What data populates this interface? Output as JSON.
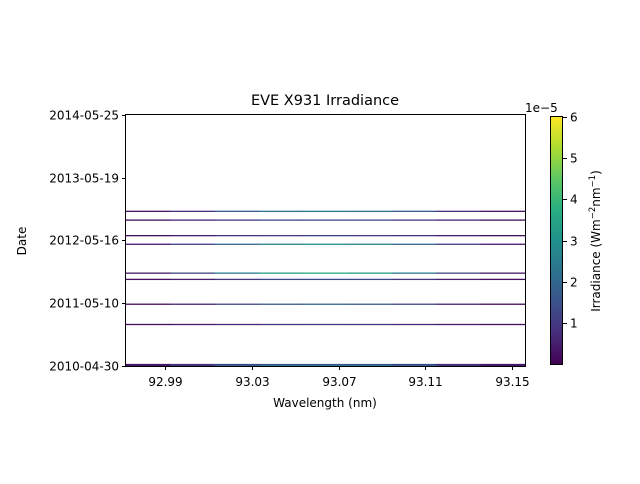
{
  "chart_data": {
    "type": "heatmap",
    "title": "EVE X931 Irradiance",
    "xlabel": "Wavelength (nm)",
    "ylabel": "Date",
    "x_ticks": [
      "92.99",
      "93.03",
      "93.07",
      "93.11",
      "93.15"
    ],
    "x_tick_values": [
      92.99,
      93.03,
      93.07,
      93.11,
      93.15
    ],
    "xlim": [
      92.972,
      93.156
    ],
    "y_ticks": [
      "2010-04-30",
      "2011-05-10",
      "2012-05-16",
      "2013-05-19",
      "2014-05-25"
    ],
    "ylim": [
      "2010-04-30",
      "2014-05-25"
    ],
    "colorbar": {
      "label": "Irradiance (Wm$^{-2}$nm$^{-1}$)",
      "label_main": "Irradiance (Wm",
      "label_sup1": "−2",
      "label_mid": "nm",
      "label_sup2": "−1",
      "label_end": ")",
      "scale_label": "1e−5",
      "ticks": [
        "1",
        "2",
        "3",
        "4",
        "5",
        "6"
      ],
      "tick_values": [
        1,
        2,
        3,
        4,
        5,
        6
      ],
      "range": [
        0,
        6
      ],
      "colormap": "viridis"
    },
    "series": [
      {
        "date": "2010-04-30",
        "values": [
          0.5,
          1.0,
          1.6,
          2.0,
          2.1,
          2.0,
          1.6,
          1.0,
          0.5
        ]
      },
      {
        "date": "2010-05-03",
        "values": [
          0.4,
          0.9,
          1.5,
          1.9,
          2.0,
          1.9,
          1.5,
          0.9,
          0.4
        ]
      },
      {
        "date": "2010-05-06",
        "values": [
          0.5,
          1.2,
          2.2,
          2.8,
          3.0,
          2.8,
          2.2,
          1.2,
          0.5
        ]
      },
      {
        "date": "2010-05-09",
        "values": [
          0.3,
          0.7,
          1.2,
          1.5,
          1.6,
          1.5,
          1.2,
          0.7,
          0.3
        ]
      },
      {
        "date": "2011-01-01",
        "values": [
          0.2,
          0.4,
          0.7,
          0.9,
          1.0,
          0.9,
          0.7,
          0.4,
          0.2
        ]
      },
      {
        "date": "2011-05-01",
        "values": [
          0.2,
          0.6,
          1.2,
          1.6,
          1.8,
          1.6,
          1.2,
          0.6,
          0.2
        ]
      },
      {
        "date": "2011-09-25",
        "values": [
          0.2,
          0.5,
          0.9,
          1.2,
          1.3,
          1.2,
          0.9,
          0.5,
          0.2
        ]
      },
      {
        "date": "2011-11-01",
        "values": [
          0.4,
          1.2,
          2.4,
          3.4,
          3.7,
          3.4,
          2.4,
          1.2,
          0.4
        ]
      },
      {
        "date": "2012-04-20",
        "values": [
          0.4,
          1.1,
          2.0,
          2.6,
          2.9,
          2.6,
          2.0,
          1.1,
          0.4
        ]
      },
      {
        "date": "2012-06-10",
        "values": [
          0.2,
          0.5,
          0.9,
          1.1,
          1.2,
          1.1,
          0.9,
          0.5,
          0.2
        ]
      },
      {
        "date": "2012-09-10",
        "values": [
          0.2,
          0.6,
          1.0,
          1.3,
          1.4,
          1.3,
          1.0,
          0.6,
          0.2
        ]
      },
      {
        "date": "2012-11-01",
        "values": [
          0.3,
          0.8,
          1.6,
          2.2,
          2.4,
          2.2,
          1.6,
          0.8,
          0.3
        ]
      }
    ]
  }
}
